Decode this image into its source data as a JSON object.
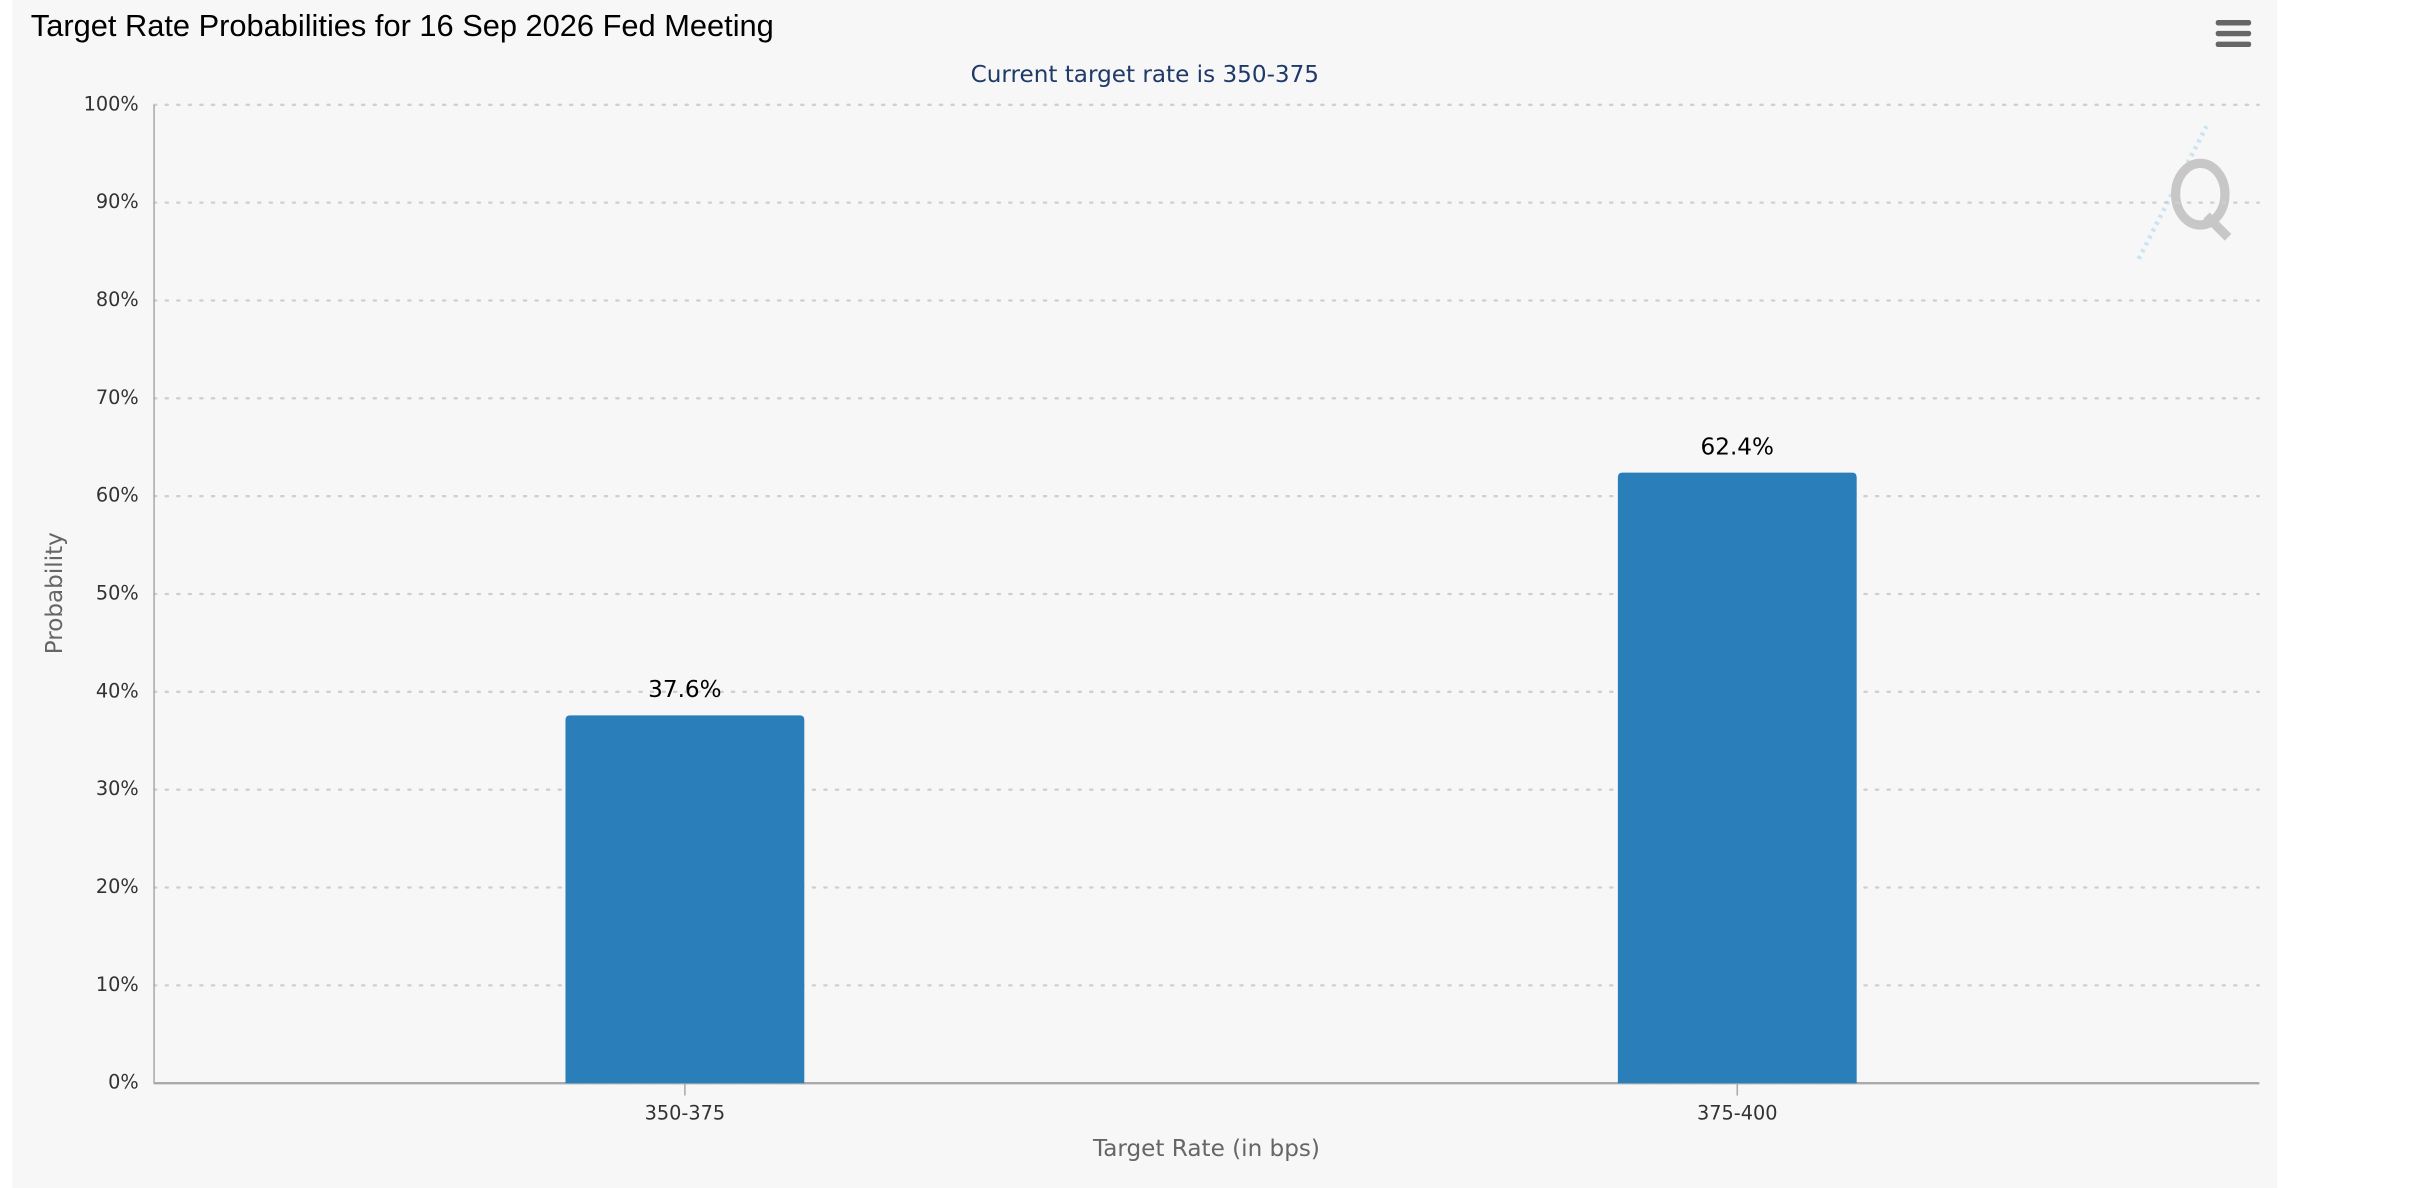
{
  "chart_data": {
    "type": "bar",
    "title": "Target Rate Probabilities for 16 Sep 2026 Fed Meeting",
    "subtitle": "Current target rate is 350-375",
    "x_label": "Target Rate (in bps)",
    "y_label": "Probability",
    "categories": [
      "350-375",
      "375-400"
    ],
    "values": [
      37.6,
      62.4
    ],
    "value_labels": [
      "37.6%",
      "62.4%"
    ],
    "color": "#2a7fba",
    "ylim": [
      0,
      100
    ],
    "yticks": [
      {
        "value": 0,
        "label": "0%"
      },
      {
        "value": 10,
        "label": "10%"
      },
      {
        "value": 20,
        "label": "20%"
      },
      {
        "value": 30,
        "label": "30%"
      },
      {
        "value": 40,
        "label": "40%"
      },
      {
        "value": 50,
        "label": "50%"
      },
      {
        "value": 60,
        "label": "60%"
      },
      {
        "value": 70,
        "label": "70%"
      },
      {
        "value": 80,
        "label": "80%"
      },
      {
        "value": 90,
        "label": "90%"
      },
      {
        "value": 100,
        "label": "100%"
      }
    ],
    "grid": true
  }
}
